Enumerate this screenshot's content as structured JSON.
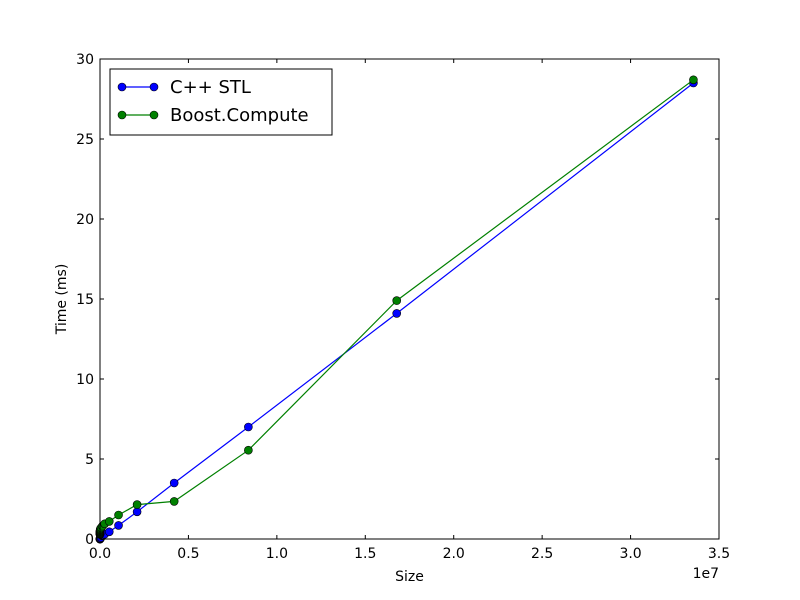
{
  "chart_data": {
    "type": "line",
    "title": "",
    "xlabel": "Size",
    "ylabel": "Time (ms)",
    "x_offset_label": "1e7",
    "xlim": [
      0,
      35000000
    ],
    "ylim": [
      0,
      30
    ],
    "xticks": [
      0,
      5000000,
      10000000,
      15000000,
      20000000,
      25000000,
      30000000,
      35000000
    ],
    "xtick_labels": [
      "0.0",
      "0.5",
      "1.0",
      "1.5",
      "2.0",
      "2.5",
      "3.0",
      "3.5"
    ],
    "yticks": [
      0,
      5,
      10,
      15,
      20,
      25,
      30
    ],
    "ytick_labels": [
      "0",
      "5",
      "10",
      "15",
      "20",
      "25",
      "30"
    ],
    "grid": false,
    "legend_position": "top-left",
    "series": [
      {
        "name": "C++ STL",
        "color": "#0000ff",
        "x": [
          2,
          4,
          8,
          16,
          32,
          64,
          128,
          256,
          512,
          1024,
          2048,
          4096,
          8192,
          16384,
          32768,
          65536,
          131072,
          262144,
          524288,
          1048576,
          2097152,
          4194304,
          8388608,
          16777216,
          33554432
        ],
        "y": [
          0.0,
          0.0,
          0.0,
          0.0,
          0.0,
          0.0,
          0.0,
          0.0,
          0.0,
          0.0,
          0.0,
          0.01,
          0.02,
          0.03,
          0.05,
          0.1,
          0.2,
          0.3,
          0.45,
          0.85,
          1.7,
          3.5,
          7.0,
          14.1,
          28.5
        ]
      },
      {
        "name": "Boost.Compute",
        "color": "#008000",
        "x": [
          2,
          4,
          8,
          16,
          32,
          64,
          128,
          256,
          512,
          1024,
          2048,
          4096,
          8192,
          16384,
          32768,
          65536,
          131072,
          262144,
          524288,
          1048576,
          2097152,
          4194304,
          8388608,
          16777216,
          33554432
        ],
        "y": [
          0.3,
          0.3,
          0.3,
          0.3,
          0.35,
          0.35,
          0.4,
          0.4,
          0.45,
          0.45,
          0.5,
          0.5,
          0.55,
          0.6,
          0.65,
          0.7,
          0.8,
          0.95,
          1.1,
          1.5,
          2.15,
          2.35,
          5.55,
          14.9,
          28.7
        ]
      }
    ]
  }
}
